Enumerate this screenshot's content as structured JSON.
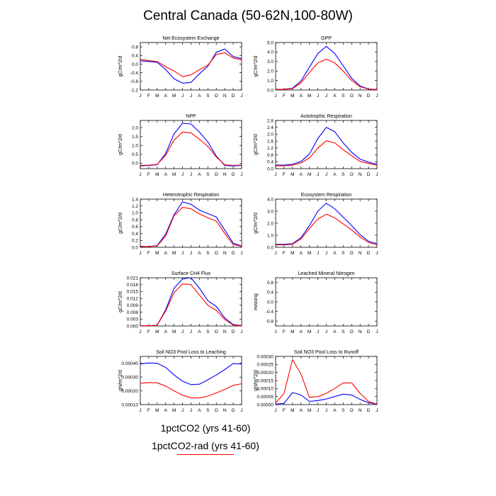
{
  "title": "Central Canada (50-62N,100-80W)",
  "legend": [
    {
      "label": "1pctCO2 (yrs 41-60)",
      "color": "#0000ff"
    },
    {
      "label": "1pctCO2-rad (yrs 41-60)",
      "color": "#ff0000"
    }
  ],
  "months": [
    "J",
    "F",
    "M",
    "A",
    "M",
    "J",
    "J",
    "A",
    "S",
    "O",
    "N",
    "D",
    "J"
  ],
  "chart_data": [
    {
      "type": "line",
      "title": "Net Ecosystem Exchange",
      "ylabel": "gC/m^2/d",
      "ylim": [
        -1.2,
        1.0
      ],
      "yticks": [
        "0.8",
        "0.4",
        "0.0",
        "-0.4",
        "-0.8",
        "-1.2"
      ],
      "series": [
        {
          "name": "1pctCO2 (yrs 41-60)",
          "color": "#0000ff",
          "values": [
            0.15,
            0.12,
            0.08,
            -0.25,
            -0.68,
            -0.88,
            -0.85,
            -0.45,
            -0.1,
            0.55,
            0.7,
            0.35,
            0.25
          ]
        },
        {
          "name": "1pctCO2-rad (yrs 41-60)",
          "color": "#ff0000",
          "values": [
            0.22,
            0.16,
            0.12,
            -0.12,
            -0.32,
            -0.58,
            -0.5,
            -0.26,
            -0.05,
            0.45,
            0.52,
            0.28,
            0.2
          ]
        }
      ]
    },
    {
      "type": "line",
      "title": "GPP",
      "ylabel": "gC/m^2/d",
      "ylim": [
        0.0,
        5.0
      ],
      "yticks": [
        "5.0",
        "4.0",
        "3.0",
        "2.0",
        "1.0",
        "0.0"
      ],
      "series": [
        {
          "name": "1pctCO2 (yrs 41-60)",
          "color": "#0000ff",
          "values": [
            0.05,
            0.08,
            0.18,
            0.95,
            2.4,
            3.85,
            4.6,
            3.85,
            2.55,
            1.25,
            0.42,
            0.1,
            0.05
          ]
        },
        {
          "name": "1pctCO2-rad (yrs 41-60)",
          "color": "#ff0000",
          "values": [
            0.05,
            0.07,
            0.14,
            0.75,
            1.85,
            2.85,
            3.25,
            2.85,
            2.0,
            1.0,
            0.34,
            0.08,
            0.05
          ]
        }
      ]
    },
    {
      "type": "line",
      "title": "NPP",
      "ylabel": "gC/m^2/d",
      "ylim": [
        -0.3,
        2.4
      ],
      "yticks": [
        "2.0",
        "1.5",
        "1.0",
        "0.5",
        "0.0"
      ],
      "series": [
        {
          "name": "1pctCO2 (yrs 41-60)",
          "color": "#0000ff",
          "values": [
            -0.15,
            -0.12,
            -0.08,
            0.55,
            1.65,
            2.25,
            2.2,
            1.75,
            1.2,
            0.4,
            -0.12,
            -0.15,
            -0.12
          ]
        },
        {
          "name": "1pctCO2-rad (yrs 41-60)",
          "color": "#ff0000",
          "values": [
            -0.12,
            -0.1,
            -0.06,
            0.45,
            1.3,
            1.75,
            1.7,
            1.35,
            0.95,
            0.35,
            -0.08,
            -0.12,
            -0.1
          ]
        }
      ]
    },
    {
      "type": "line",
      "title": "Autotrophic Respiration",
      "ylabel": "gC/m^2/d",
      "ylim": [
        0.0,
        2.8
      ],
      "yticks": [
        "2.8",
        "2.4",
        "2.0",
        "1.6",
        "1.2",
        "0.8",
        "0.4",
        "0.0"
      ],
      "series": [
        {
          "name": "1pctCO2 (yrs 41-60)",
          "color": "#0000ff",
          "values": [
            0.2,
            0.2,
            0.25,
            0.42,
            0.85,
            1.75,
            2.4,
            2.15,
            1.5,
            0.95,
            0.55,
            0.38,
            0.25
          ]
        },
        {
          "name": "1pctCO2-rad (yrs 41-60)",
          "color": "#ff0000",
          "values": [
            0.17,
            0.17,
            0.2,
            0.33,
            0.62,
            1.2,
            1.62,
            1.5,
            1.1,
            0.75,
            0.42,
            0.3,
            0.2
          ]
        }
      ]
    },
    {
      "type": "line",
      "title": "Heterotrophic Respiration",
      "ylabel": "gC/m^2/d",
      "ylim": [
        0.0,
        1.4
      ],
      "yticks": [
        "1.4",
        "1.2",
        "1.0",
        "0.8",
        "0.6",
        "0.4",
        "0.2",
        "0.0"
      ],
      "series": [
        {
          "name": "1pctCO2 (yrs 41-60)",
          "color": "#0000ff",
          "values": [
            0.03,
            0.02,
            0.05,
            0.38,
            0.95,
            1.32,
            1.25,
            1.08,
            0.98,
            0.88,
            0.5,
            0.12,
            0.04
          ]
        },
        {
          "name": "1pctCO2-rad (yrs 41-60)",
          "color": "#ff0000",
          "values": [
            0.02,
            0.02,
            0.04,
            0.33,
            0.92,
            1.16,
            1.12,
            0.97,
            0.86,
            0.76,
            0.4,
            0.08,
            0.03
          ]
        }
      ]
    },
    {
      "type": "line",
      "title": "Ecosystem Respiration",
      "ylabel": "gC/m^2/d",
      "ylim": [
        0.0,
        4.0
      ],
      "yticks": [
        "4.0",
        "3.0",
        "2.0",
        "1.0",
        "0.0"
      ],
      "series": [
        {
          "name": "1pctCO2 (yrs 41-60)",
          "color": "#0000ff",
          "values": [
            0.25,
            0.25,
            0.3,
            0.8,
            1.8,
            3.0,
            3.65,
            3.2,
            2.5,
            1.8,
            1.05,
            0.5,
            0.3
          ]
        },
        {
          "name": "1pctCO2-rad (yrs 41-60)",
          "color": "#ff0000",
          "values": [
            0.2,
            0.2,
            0.25,
            0.7,
            1.55,
            2.35,
            2.75,
            2.45,
            1.95,
            1.45,
            0.85,
            0.4,
            0.22
          ]
        }
      ]
    },
    {
      "type": "line",
      "title": "Surface CH4 Flux",
      "ylabel": "gC/m^2/d",
      "ylim": [
        0.0,
        0.021
      ],
      "yticks": [
        "0.021",
        "0.018",
        "0.015",
        "0.012",
        "0.009",
        "0.006",
        "0.003",
        "0.000"
      ],
      "series": [
        {
          "name": "1pctCO2 (yrs 41-60)",
          "color": "#0000ff",
          "values": [
            0.0001,
            0.0001,
            0.0003,
            0.007,
            0.0165,
            0.0205,
            0.021,
            0.0165,
            0.011,
            0.0085,
            0.0035,
            0.0006,
            0.0002
          ]
        },
        {
          "name": "1pctCO2-rad (yrs 41-60)",
          "color": "#ff0000",
          "values": [
            0.0001,
            0.0001,
            0.0003,
            0.0065,
            0.0145,
            0.0183,
            0.018,
            0.0135,
            0.009,
            0.0068,
            0.0028,
            0.0004,
            0.0001
          ]
        }
      ]
    },
    {
      "type": "line",
      "title": "Leached Mineral Nitrogen",
      "ylabel": "missing",
      "ylim": [
        -1.0,
        1.0
      ],
      "yticks": [
        "0.8",
        "0.4",
        "0.0",
        "-0.4",
        "-0.8"
      ],
      "series": []
    },
    {
      "type": "line",
      "title": "Soil NO3 Pool Loss to Leaching",
      "ylabel": "gN/m^2/d",
      "ylim": [
        0.0001,
        0.00045
      ],
      "yticks": [
        "0.00040",
        "0.00030",
        "0.00020",
        "0.00010"
      ],
      "series": [
        {
          "name": "1pctCO2 (yrs 41-60)",
          "color": "#0000ff",
          "values": [
            0.000395,
            0.000402,
            0.0004,
            0.00037,
            0.000315,
            0.00027,
            0.000245,
            0.000248,
            0.00028,
            0.000315,
            0.000355,
            0.000398,
            0.000395
          ]
        },
        {
          "name": "1pctCO2-rad (yrs 41-60)",
          "color": "#ff0000",
          "values": [
            0.000255,
            0.00026,
            0.000258,
            0.000235,
            0.0002,
            0.000168,
            0.00015,
            0.000148,
            0.000162,
            0.000185,
            0.00021,
            0.00024,
            0.000252
          ]
        }
      ]
    },
    {
      "type": "line",
      "title": "Soil NO3 Pool Loss to Runoff",
      "ylabel": "gN/m^2/d",
      "ylim": [
        0.0,
        0.0003
      ],
      "yticks": [
        "0.00030",
        "0.00025",
        "0.00020",
        "0.00015",
        "0.00010",
        "0.00005",
        "0.00000"
      ],
      "series": [
        {
          "name": "1pctCO2 (yrs 41-60)",
          "color": "#0000ff",
          "values": [
            2e-06,
            8e-06,
            7.5e-05,
            6e-05,
            2e-05,
            2.5e-05,
            3.5e-05,
            5e-05,
            6.5e-05,
            6e-05,
            3.2e-05,
            1.2e-05,
            2e-06
          ]
        },
        {
          "name": "1pctCO2-rad (yrs 41-60)",
          "color": "#ff0000",
          "values": [
            1e-05,
            7e-05,
            0.00028,
            0.00019,
            4.5e-05,
            5e-05,
            7e-05,
            0.0001,
            0.000135,
            0.000135,
            7e-05,
            2e-05,
            2e-06
          ]
        }
      ]
    }
  ]
}
